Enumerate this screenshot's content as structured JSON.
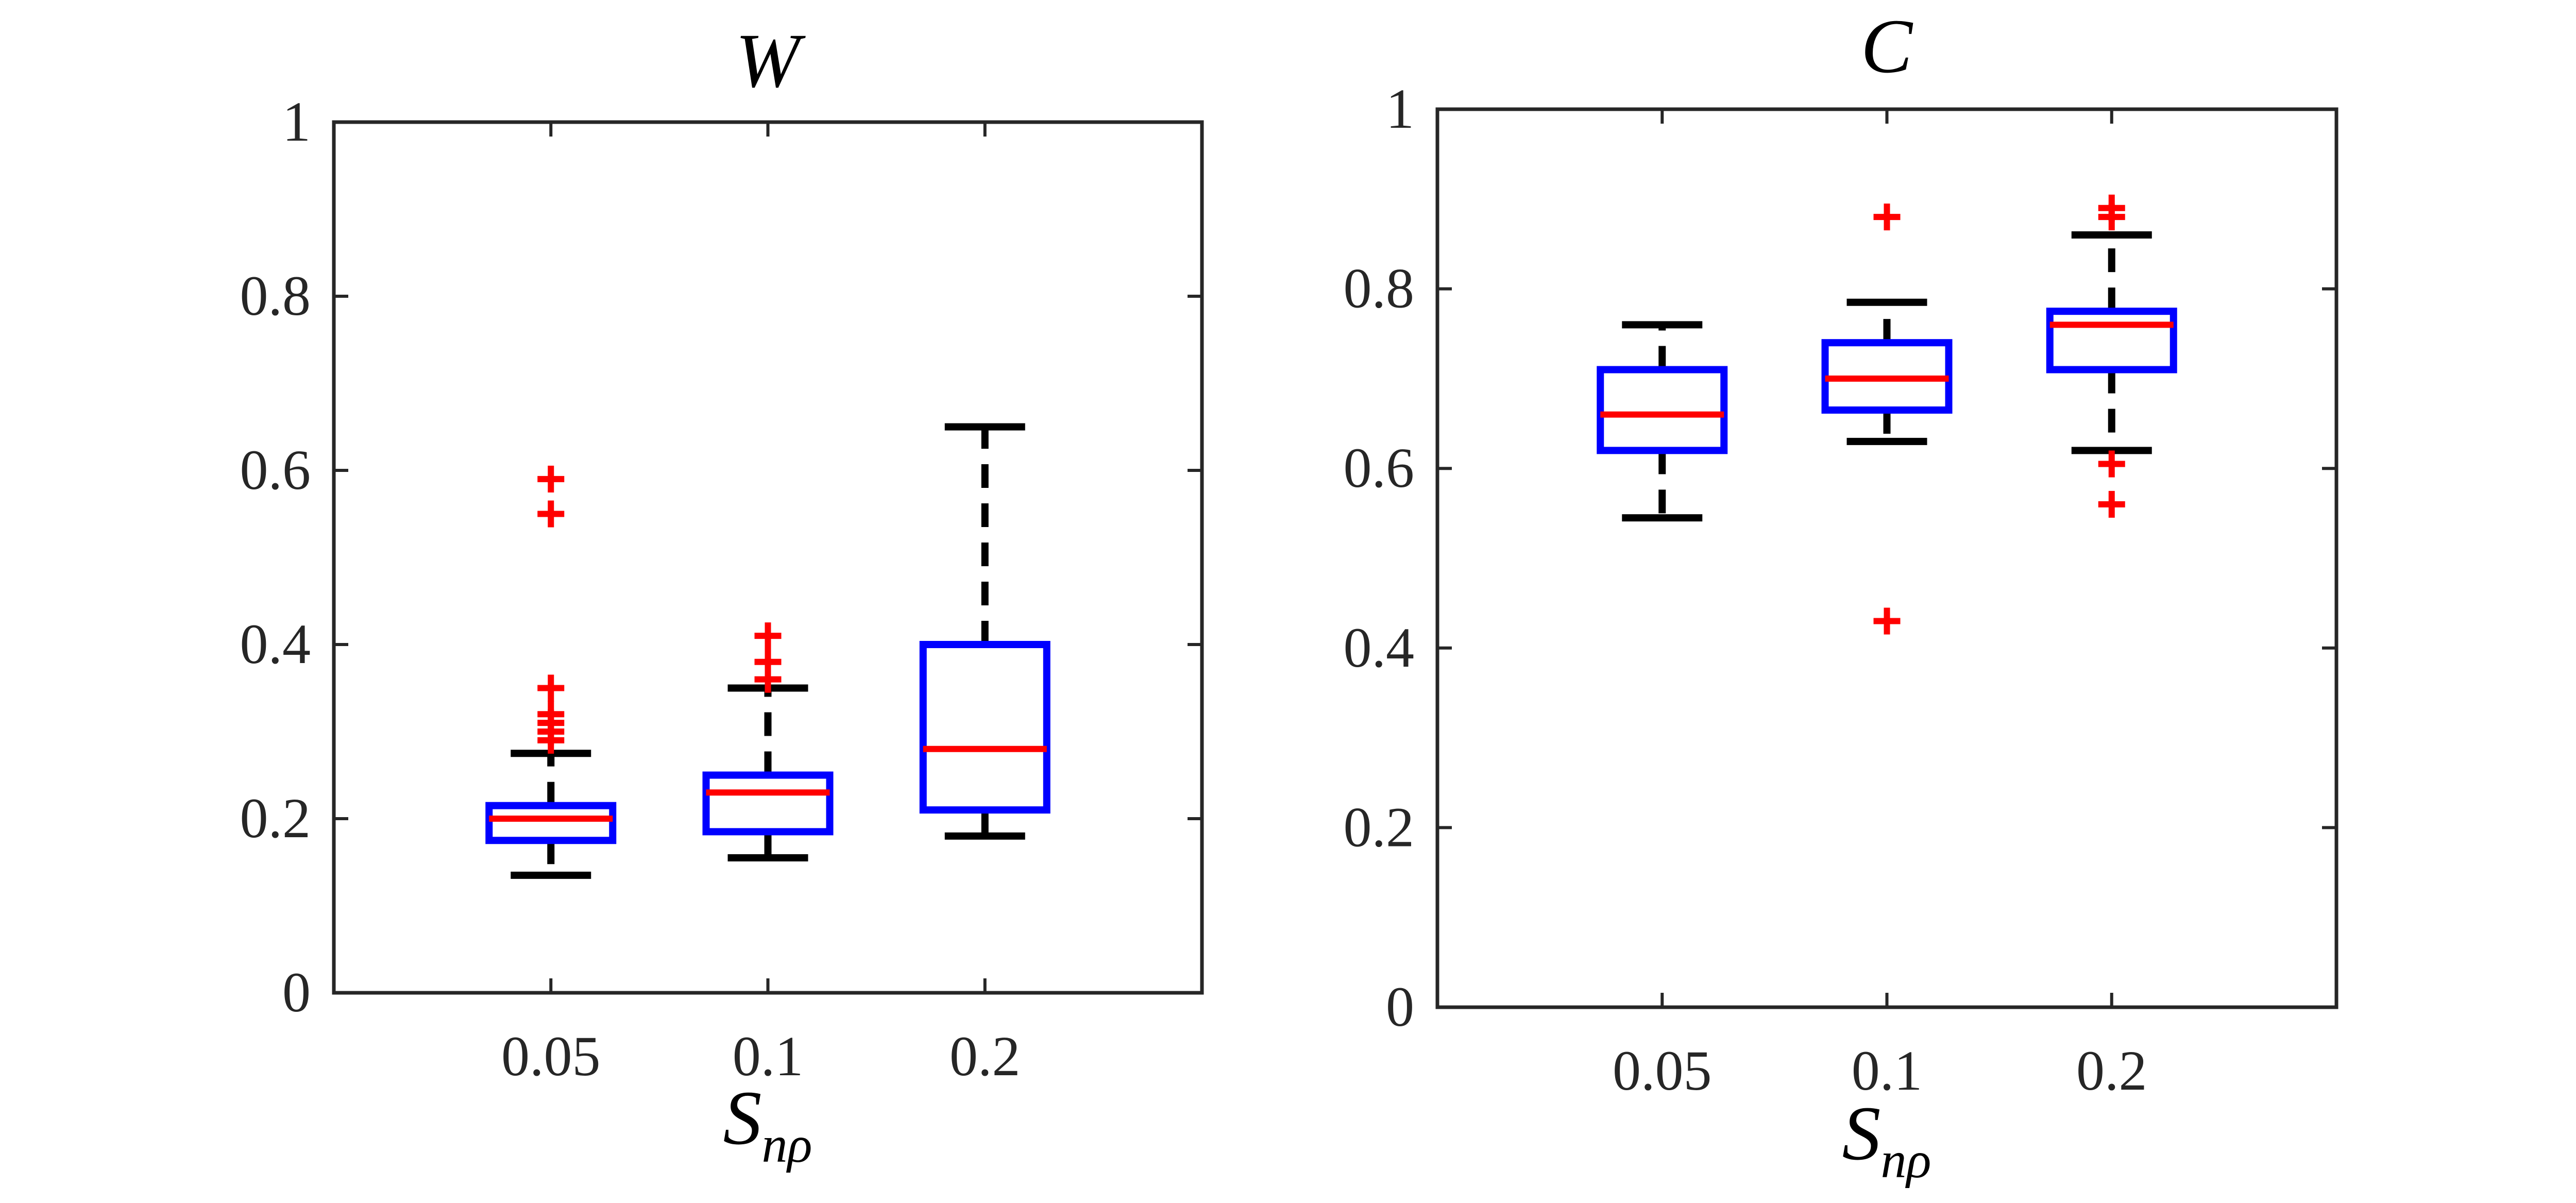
{
  "colors": {
    "box": "#0000ff",
    "median": "#ff0000",
    "whisker": "#000000",
    "outlier": "#ff0000",
    "axis": "#262626"
  },
  "chart_data": [
    {
      "type": "box",
      "title": "W",
      "xlabel_main": "S",
      "xlabel_sub": "nρ",
      "ylabel": "",
      "ylim": [
        0,
        1
      ],
      "yticks": [
        0,
        0.2,
        0.4,
        0.6,
        0.8,
        1
      ],
      "ytick_labels": [
        "0",
        "0.2",
        "0.4",
        "0.6",
        "0.8",
        "1"
      ],
      "categories": [
        "0.05",
        "0.1",
        "0.2"
      ],
      "boxes": [
        {
          "category": "0.05",
          "q1": 0.175,
          "median": 0.2,
          "q3": 0.215,
          "whisker_low": 0.135,
          "whisker_high": 0.275,
          "outliers": [
            0.29,
            0.3,
            0.31,
            0.32,
            0.35,
            0.55,
            0.59
          ]
        },
        {
          "category": "0.1",
          "q1": 0.185,
          "median": 0.23,
          "q3": 0.25,
          "whisker_low": 0.155,
          "whisker_high": 0.35,
          "outliers": [
            0.36,
            0.38,
            0.41
          ]
        },
        {
          "category": "0.2",
          "q1": 0.21,
          "median": 0.28,
          "q3": 0.4,
          "whisker_low": 0.18,
          "whisker_high": 0.65,
          "outliers": []
        }
      ]
    },
    {
      "type": "box",
      "title": "C",
      "xlabel_main": "S",
      "xlabel_sub": "nρ",
      "ylabel": "",
      "ylim": [
        0,
        1
      ],
      "yticks": [
        0,
        0.2,
        0.4,
        0.6,
        0.8,
        1
      ],
      "ytick_labels": [
        "0",
        "0.2",
        "0.4",
        "0.6",
        "0.8",
        "1"
      ],
      "categories": [
        "0.05",
        "0.1",
        "0.2"
      ],
      "boxes": [
        {
          "category": "0.05",
          "q1": 0.62,
          "median": 0.66,
          "q3": 0.71,
          "whisker_low": 0.545,
          "whisker_high": 0.76,
          "outliers": []
        },
        {
          "category": "0.1",
          "q1": 0.665,
          "median": 0.7,
          "q3": 0.74,
          "whisker_low": 0.63,
          "whisker_high": 0.785,
          "outliers": [
            0.43,
            0.88
          ]
        },
        {
          "category": "0.2",
          "q1": 0.71,
          "median": 0.76,
          "q3": 0.775,
          "whisker_low": 0.62,
          "whisker_high": 0.86,
          "outliers": [
            0.56,
            0.605,
            0.88,
            0.89
          ]
        }
      ]
    }
  ]
}
